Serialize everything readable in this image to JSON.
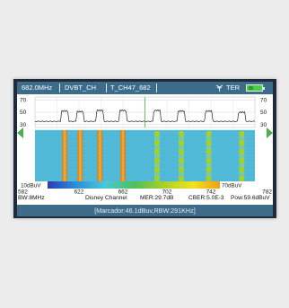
{
  "header": {
    "frequency": "682.0MHz",
    "standard": "DVBT_CH",
    "channel": "T_CH47_682",
    "ter_icon": "antenna-icon",
    "ter_label": "TER",
    "battery_icon": "battery-icon",
    "battery_level": 0.3
  },
  "scale": {
    "min_label": "10dBuV",
    "max_label": "70dBuV",
    "colors": [
      "#2a3bb8",
      "#2f8fd6",
      "#49c9d8",
      "#4fbf5a",
      "#a6d12a",
      "#f2e21c",
      "#f29a1a",
      "#e2231a"
    ]
  },
  "chart_data": {
    "type": "line",
    "y_ticks": [
      "70",
      "50",
      "30"
    ],
    "ylim": [
      25,
      75
    ],
    "x_ticks": [
      "582",
      "622",
      "662",
      "702",
      "742",
      "782"
    ],
    "xlim": [
      582,
      782
    ],
    "marker_freq": 682,
    "channel_centers": [
      609,
      623,
      641,
      662,
      693,
      715,
      740,
      770
    ],
    "floor_dbuv": 35,
    "peaks_dbuv": [
      52,
      51,
      53,
      53,
      53,
      52,
      52,
      50
    ],
    "waterfall_levels": [
      62,
      60,
      62,
      62,
      40,
      44,
      44,
      45
    ],
    "waterfall_background": "#4fb8d6"
  },
  "info": {
    "bw": "BW:8MHz",
    "service": "Disney Channel",
    "mer": "MER:29.7dB",
    "cber": "CBER:5.0E-3",
    "pow": "Pow:59.6dBuV"
  },
  "marker_label": "[Marcador:46.1dBuv,RBW:291KHz]"
}
